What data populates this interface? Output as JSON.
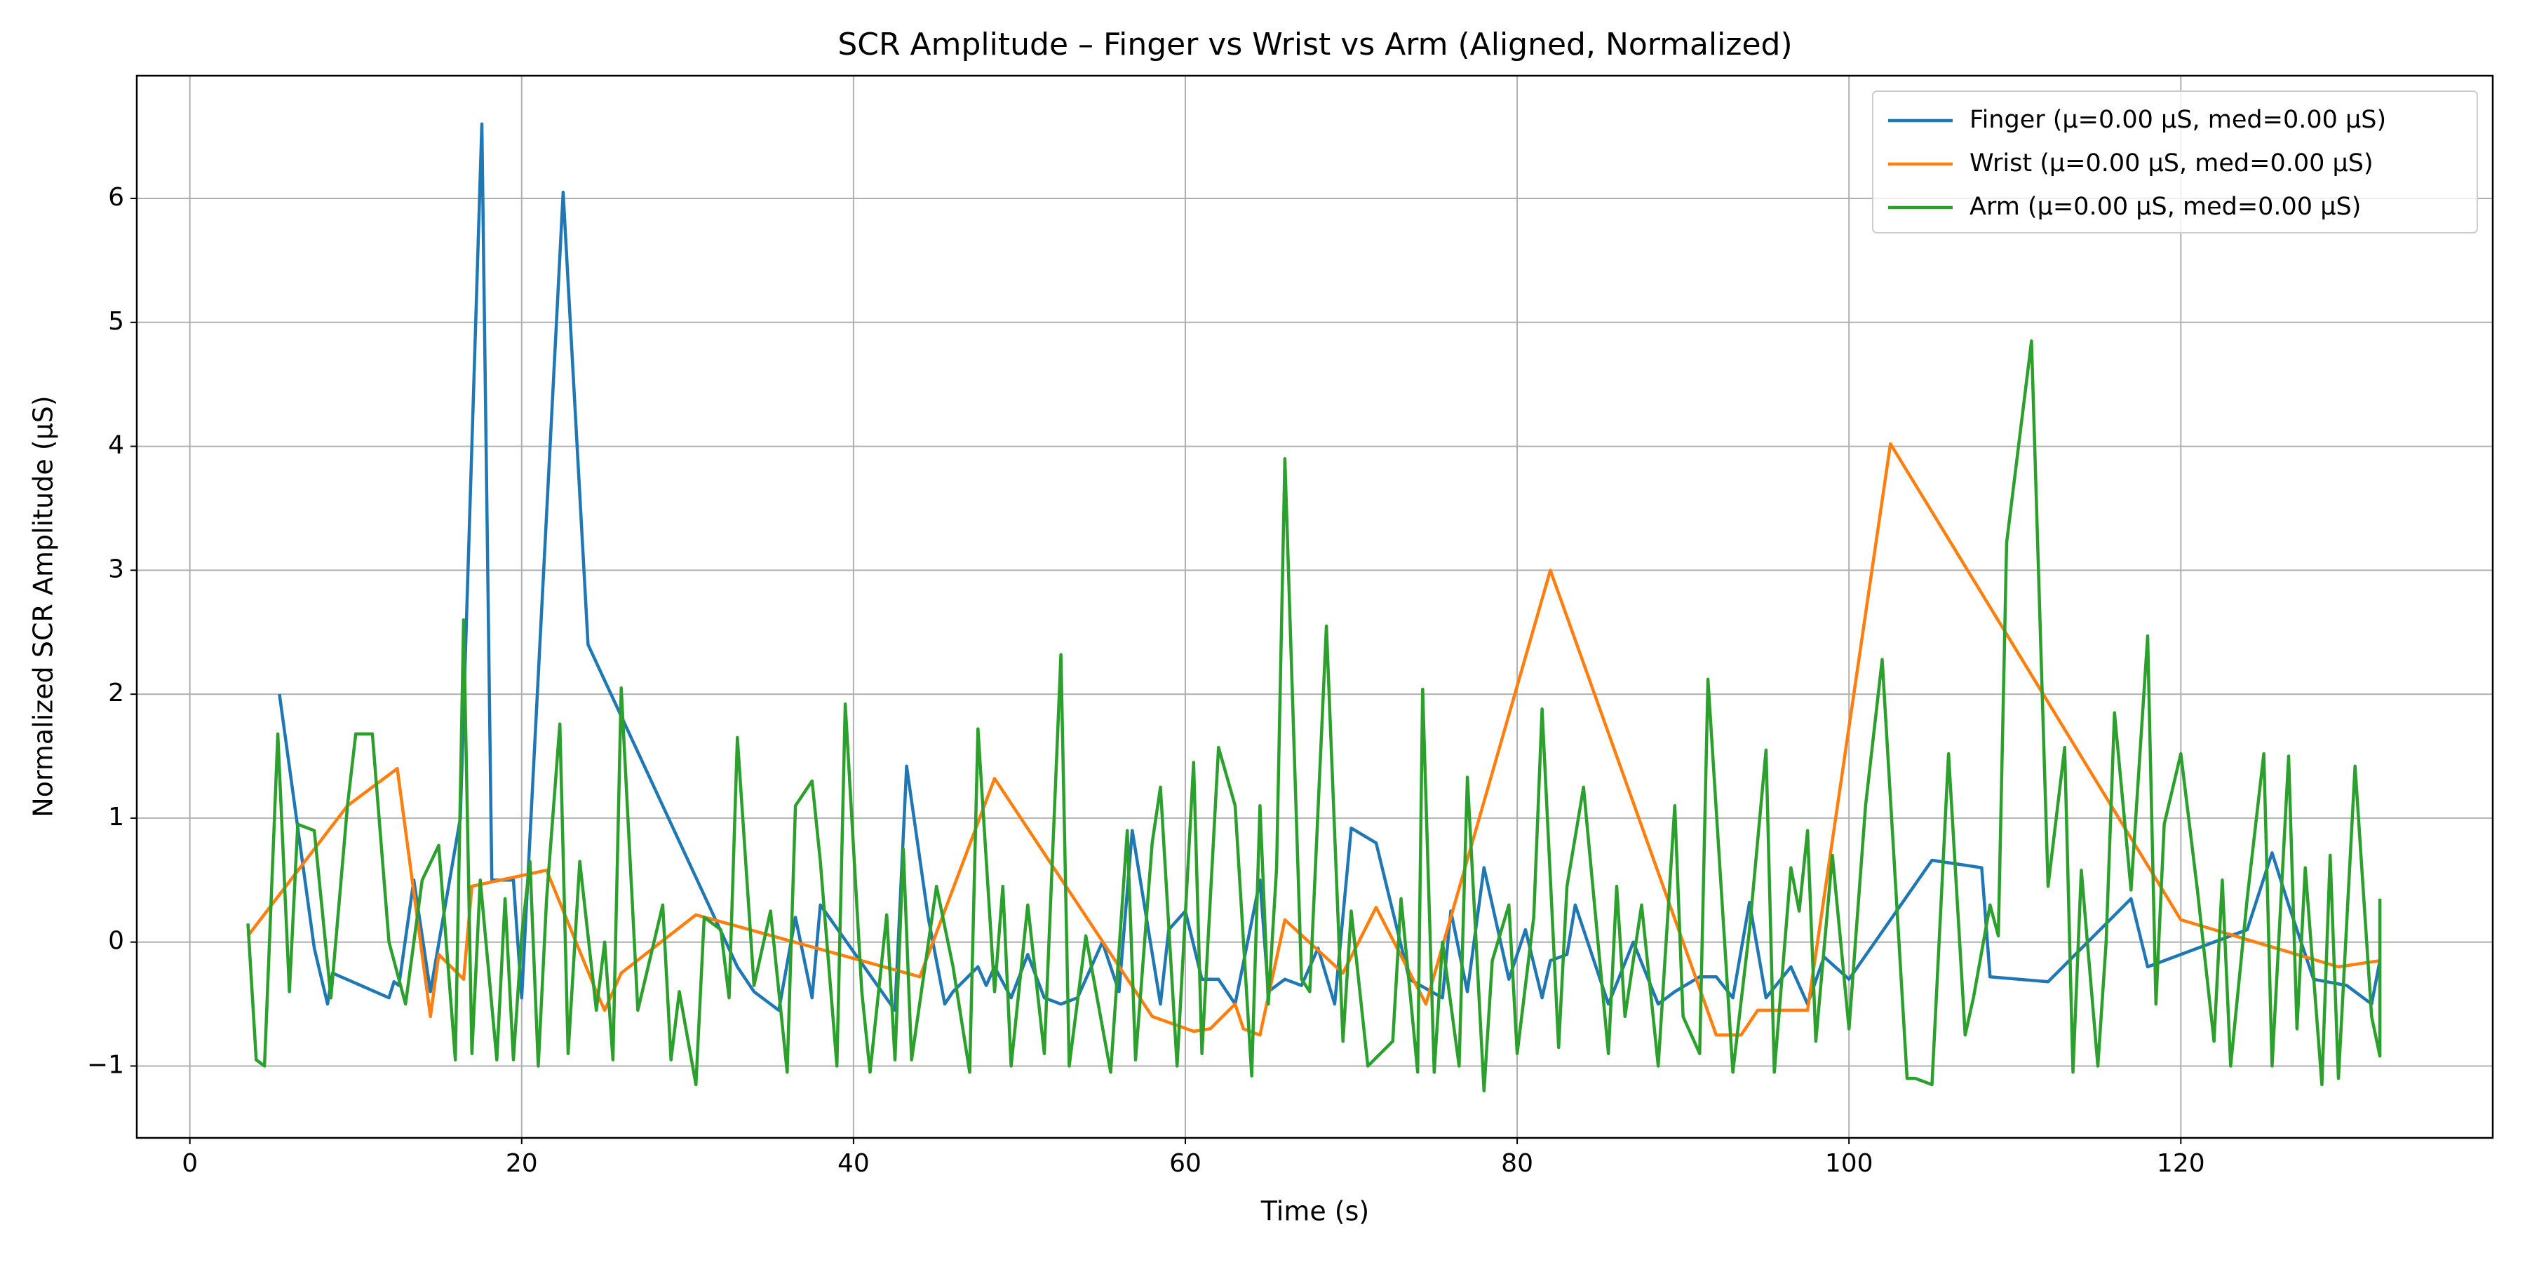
{
  "chart_data": {
    "type": "line",
    "title": "SCR Amplitude – Finger vs Wrist vs Arm (Aligned, Normalized)",
    "x_label": "Time (s)",
    "y_label": "Normalized SCR Amplitude (μS)",
    "xlim": [
      -3.2,
      138.8
    ],
    "ylim": [
      -1.58,
      6.99
    ],
    "xticks": [
      0,
      20,
      40,
      60,
      80,
      100,
      120
    ],
    "yticks": [
      {
        "value": -1,
        "label": "−1"
      },
      0,
      1,
      2,
      3,
      4,
      5,
      6
    ],
    "grid": true,
    "legend": "upper right",
    "series": [
      {
        "name": "Finger (μ=0.00 μS, med=0.00 μS)",
        "color": "#1f77b4",
        "x": [
          5.4,
          7.5,
          8.3,
          8.6,
          12,
          12.3,
          12.6,
          13.5,
          14.5,
          16.3,
          17.6,
          18.2,
          19.5,
          20,
          22.5,
          24,
          33,
          34,
          35.5,
          36.5,
          37.5,
          38,
          42.5,
          43.2,
          44.5,
          45.5,
          46,
          47.5,
          48,
          48.5,
          49.5,
          50.5,
          51.5,
          52.5,
          53.5,
          55,
          56,
          56.8,
          58.5,
          59,
          60,
          61,
          62,
          63,
          64.5,
          65,
          66,
          67,
          68,
          69,
          70,
          71.5,
          73.5,
          75.5,
          76,
          77,
          78,
          79.5,
          80.5,
          81.5,
          82,
          83,
          83.5,
          85.5,
          87,
          88.5,
          89.5,
          91,
          92,
          93,
          94,
          95,
          96.5,
          97.5,
          98.5,
          100,
          105,
          108,
          108.5,
          112,
          117,
          118,
          124,
          125.5,
          126.5,
          128,
          130,
          131.5,
          132
        ],
        "values": [
          2.0,
          -0.05,
          -0.5,
          -0.25,
          -0.45,
          -0.32,
          -0.35,
          0.5,
          -0.4,
          1.0,
          6.6,
          0.5,
          0.5,
          -0.45,
          6.05,
          2.4,
          -0.2,
          -0.4,
          -0.55,
          0.2,
          -0.45,
          0.3,
          -0.55,
          1.42,
          0.2,
          -0.5,
          -0.4,
          -0.2,
          -0.35,
          -0.2,
          -0.45,
          -0.1,
          -0.45,
          -0.5,
          -0.45,
          0,
          -0.4,
          0.9,
          -0.5,
          0.1,
          0.25,
          -0.3,
          -0.3,
          -0.5,
          0.5,
          -0.4,
          -0.3,
          -0.35,
          -0.05,
          -0.5,
          0.92,
          0.8,
          -0.3,
          -0.45,
          0.25,
          -0.4,
          0.6,
          -0.3,
          0.1,
          -0.45,
          -0.15,
          -0.1,
          0.3,
          -0.5,
          0,
          -0.5,
          -0.4,
          -0.28,
          -0.28,
          -0.45,
          0.32,
          -0.45,
          -0.2,
          -0.5,
          -0.12,
          -0.3,
          0.66,
          0.6,
          -0.28,
          -0.32,
          0.35,
          -0.2,
          0.1,
          0.72,
          0.3,
          -0.3,
          -0.35,
          -0.5,
          -0.15
        ]
      },
      {
        "name": "Wrist (μ=0.00 μS, med=0.00 μS)",
        "color": "#ff7f0e",
        "x": [
          3.5,
          9.5,
          12.5,
          14.5,
          15,
          16.5,
          17,
          21.5,
          24.5,
          25,
          26,
          30.5,
          44,
          48.5,
          58,
          60.5,
          61.5,
          63,
          63.5,
          64.5,
          66,
          69.5,
          71.5,
          74.5,
          82,
          92,
          93.5,
          94.5,
          97.5,
          102.5,
          120,
          129.5,
          132
        ],
        "values": [
          0.05,
          1.1,
          1.4,
          -0.6,
          -0.1,
          -0.3,
          0.45,
          0.58,
          -0.4,
          -0.55,
          -0.25,
          0.22,
          -0.28,
          1.32,
          -0.6,
          -0.72,
          -0.7,
          -0.5,
          -0.7,
          -0.75,
          0.18,
          -0.25,
          0.28,
          -0.5,
          3.0,
          -0.75,
          -0.75,
          -0.55,
          -0.55,
          4.02,
          0.18,
          -0.2,
          -0.15
        ]
      },
      {
        "name": "Arm (μ=0.00 μS, med=0.00 μS)",
        "color": "#2ca02c",
        "x": [
          3.5,
          4,
          4.5,
          5.3,
          6,
          6.5,
          7.5,
          8.5,
          9.5,
          10,
          11,
          12,
          13,
          14,
          15,
          16,
          16.5,
          17,
          17.5,
          18.5,
          19,
          19.5,
          20,
          20.5,
          21,
          21.5,
          22.3,
          22.8,
          23.5,
          24.5,
          25,
          25.5,
          26,
          27,
          28.5,
          29,
          29.5,
          30.5,
          31,
          32,
          32.5,
          33,
          34,
          35,
          36,
          36.5,
          37.5,
          38,
          39,
          39.5,
          40.5,
          41,
          42,
          42.5,
          43,
          43.5,
          45,
          46,
          47,
          47.5,
          48.5,
          49,
          49.5,
          50.5,
          51.5,
          52.5,
          53,
          54,
          55.5,
          56.5,
          57,
          58,
          58.5,
          59.5,
          60.5,
          61,
          62,
          63,
          64,
          64.5,
          65,
          65.5,
          66,
          67,
          67.5,
          68.5,
          69.5,
          70,
          71,
          72.5,
          73,
          74,
          74.3,
          75,
          75.5,
          76.5,
          77,
          78,
          78.5,
          79.5,
          80,
          81,
          81.5,
          82.5,
          83,
          84,
          85.5,
          86,
          86.5,
          87.5,
          88.5,
          89.5,
          90,
          91,
          91.5,
          93,
          94,
          95,
          95.5,
          96.5,
          97,
          97.5,
          98,
          99,
          100,
          101,
          102,
          103.5,
          104,
          105,
          106,
          107,
          107.5,
          108.5,
          109,
          109.5,
          111,
          112,
          113,
          113.5,
          114,
          115,
          115.5,
          116,
          117,
          118,
          118.5,
          119,
          120,
          121,
          122,
          122.5,
          123,
          124,
          125,
          125.5,
          126.5,
          127,
          127.5,
          128.5,
          129,
          129.5,
          130.5,
          131.5,
          132,
          132
        ],
        "values": [
          0.15,
          -0.95,
          -1.0,
          1.68,
          -0.4,
          0.95,
          0.9,
          -0.45,
          1.1,
          1.68,
          1.68,
          0,
          -0.5,
          0.5,
          0.78,
          -0.95,
          2.6,
          -0.9,
          0.5,
          -0.95,
          0.35,
          -0.95,
          0.05,
          0.65,
          -1.0,
          0.35,
          1.76,
          -0.9,
          0.65,
          -0.55,
          0.0,
          -0.95,
          2.05,
          -0.55,
          0.3,
          -0.95,
          -0.4,
          -1.15,
          0.2,
          0.1,
          -0.45,
          1.65,
          -0.35,
          0.25,
          -1.05,
          1.1,
          1.3,
          0.65,
          -1.0,
          1.92,
          -0.4,
          -1.05,
          0.22,
          -0.95,
          0.75,
          -0.95,
          0.45,
          -0.2,
          -1.05,
          1.72,
          -0.4,
          0.45,
          -1.0,
          0.3,
          -0.9,
          2.32,
          -1.0,
          0.05,
          -1.05,
          0.9,
          -0.95,
          0.8,
          1.25,
          -1.0,
          1.45,
          -0.9,
          1.57,
          1.1,
          -1.08,
          1.1,
          -0.5,
          0.6,
          3.9,
          -0.3,
          -0.4,
          2.55,
          -0.8,
          0.25,
          -1.0,
          -0.8,
          0.35,
          -1.05,
          2.04,
          -1.05,
          0.0,
          -1.0,
          1.33,
          -1.2,
          -0.15,
          0.3,
          -0.9,
          0.2,
          1.88,
          -0.85,
          0.45,
          1.25,
          -0.9,
          0.45,
          -0.6,
          0.3,
          -1.0,
          1.1,
          -0.6,
          -0.9,
          2.12,
          -1.05,
          0.1,
          1.55,
          -1.05,
          0.6,
          0.25,
          0.9,
          -0.8,
          0.7,
          -0.7,
          1.1,
          2.28,
          -1.1,
          -1.1,
          -1.15,
          1.52,
          -0.75,
          -0.45,
          0.3,
          0.05,
          3.22,
          4.85,
          0.45,
          1.57,
          -1.05,
          0.58,
          -1.0,
          0.0,
          1.85,
          0.42,
          2.47,
          -0.5,
          0.95,
          1.52,
          0.42,
          -0.8,
          0.5,
          -1.0,
          0.35,
          1.52,
          -1.0,
          1.5,
          -0.7,
          0.6,
          -1.15,
          0.7,
          -1.1,
          1.42,
          -0.6,
          -0.92,
          0.35
        ]
      }
    ]
  }
}
